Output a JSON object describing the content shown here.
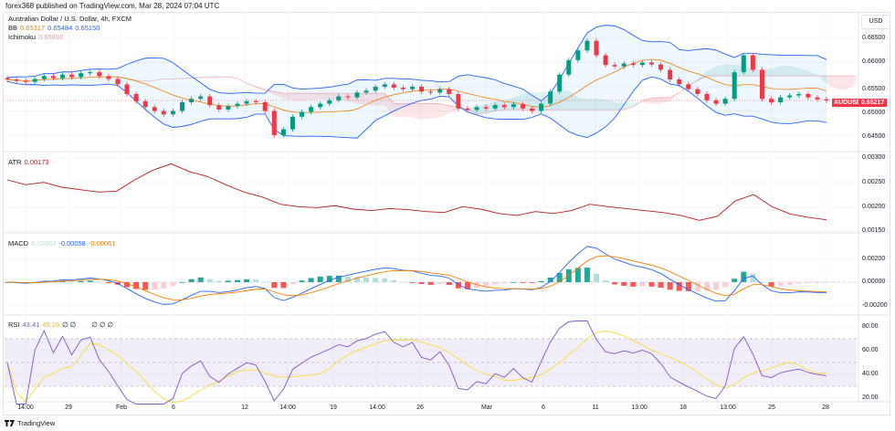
{
  "published": "forex368 published on TradingView.com, Mar 28, 2024 07:04 UTC",
  "symbol_title": "Australian Dollar / U.S. Dollar, 4h, FXCM",
  "legend": {
    "bb": {
      "label": "BB",
      "values": [
        "0.65317",
        "0.65484",
        "0.65150"
      ],
      "colors": [
        "#f57c00",
        "#2962ff",
        "#2962ff"
      ]
    },
    "ichimoku": {
      "label": "Ichimoku",
      "value": "0.65692",
      "color": "#ef9a9a"
    },
    "atr": {
      "label": "ATR",
      "value": "0.00173",
      "color": "#b71c1c"
    },
    "macd": {
      "label": "MACD",
      "values": [
        "0.00003",
        "-0.00058",
        "-0.00061"
      ],
      "colors": [
        "#b2dfdb",
        "#2962ff",
        "#f57c00"
      ]
    },
    "rsi": {
      "label": "RSI",
      "values": [
        "43.41",
        "45.16",
        "∅ ∅",
        "∅ ∅ ∅"
      ],
      "colors": [
        "#7e57c2",
        "#fdd835",
        "#131722",
        "#131722"
      ]
    }
  },
  "currency_button": "USD",
  "last_price": {
    "symbol": "AUDUSD",
    "value": "0.65217",
    "color": "#f23645"
  },
  "price_axis": [
    "0.66500",
    "0.66000",
    "0.65500",
    "0.65000",
    "0.64500"
  ],
  "atr_axis": [
    "0.00300",
    "0.00250",
    "0.00200",
    "0.00150"
  ],
  "macd_axis": [
    "0.00200",
    "0.00000",
    "-0.00200"
  ],
  "rsi_axis": [
    "80.00",
    "60.00",
    "40.00",
    "20.00"
  ],
  "time_axis": [
    "14:00",
    "29",
    "Feb",
    "6",
    "12",
    "14:00",
    "19",
    "14:00",
    "26",
    "Mar",
    "6",
    "11",
    "13:00",
    "18",
    "13:00",
    "25",
    "28"
  ],
  "footer": "TradingView",
  "colors": {
    "up": "#089981",
    "down": "#f23645",
    "bb": "#2962ff",
    "basis": "#f57c00",
    "rsi": "#7e57c2",
    "rsi_ma": "#fdd835",
    "atr": "#b71c1c"
  },
  "chart_data": {
    "type": "candlestick",
    "timeframe": "4h",
    "close": [
      0.6565,
      0.6562,
      0.656,
      0.6566,
      0.6572,
      0.6568,
      0.6575,
      0.657,
      0.6578,
      0.658,
      0.6572,
      0.6566,
      0.6555,
      0.6535,
      0.652,
      0.6508,
      0.65,
      0.6493,
      0.65,
      0.6518,
      0.6525,
      0.653,
      0.6512,
      0.6503,
      0.651,
      0.6515,
      0.652,
      0.6518,
      0.65,
      0.645,
      0.6462,
      0.6488,
      0.6498,
      0.6508,
      0.6515,
      0.6522,
      0.653,
      0.6528,
      0.6538,
      0.6542,
      0.655,
      0.6555,
      0.6548,
      0.6545,
      0.655,
      0.654,
      0.6538,
      0.6545,
      0.6535,
      0.6505,
      0.6502,
      0.6508,
      0.6505,
      0.6512,
      0.6508,
      0.6514,
      0.6505,
      0.65,
      0.6515,
      0.654,
      0.6575,
      0.6605,
      0.6625,
      0.6645,
      0.6615,
      0.6595,
      0.6592,
      0.6598,
      0.6595,
      0.66,
      0.6596,
      0.6585,
      0.6565,
      0.6555,
      0.6545,
      0.6535,
      0.6522,
      0.6515,
      0.6525,
      0.658,
      0.6615,
      0.6585,
      0.6525,
      0.6518,
      0.6528,
      0.6532,
      0.6535,
      0.6528,
      0.6524,
      0.65217
    ],
    "atr": [
      0.00255,
      0.00245,
      0.0025,
      0.0024,
      0.00235,
      0.0023,
      0.00232,
      0.00255,
      0.00275,
      0.00288,
      0.00272,
      0.00262,
      0.00245,
      0.0023,
      0.0022,
      0.00205,
      0.002,
      0.00198,
      0.00202,
      0.00195,
      0.00192,
      0.00196,
      0.00194,
      0.0019,
      0.00188,
      0.002,
      0.00195,
      0.00186,
      0.00182,
      0.0019,
      0.00186,
      0.00192,
      0.00205,
      0.002,
      0.00196,
      0.00192,
      0.00188,
      0.00182,
      0.00172,
      0.0018,
      0.00212,
      0.00225,
      0.002,
      0.00185,
      0.00178,
      0.00173
    ],
    "price_range": [
      0.6435,
      0.6685
    ],
    "atr_range": [
      0.0014,
      0.0031
    ],
    "macd_range": [
      -0.0028,
      0.0032
    ],
    "rsi_range": [
      15,
      85
    ],
    "rsi_band": [
      30,
      70
    ],
    "grid": true
  }
}
